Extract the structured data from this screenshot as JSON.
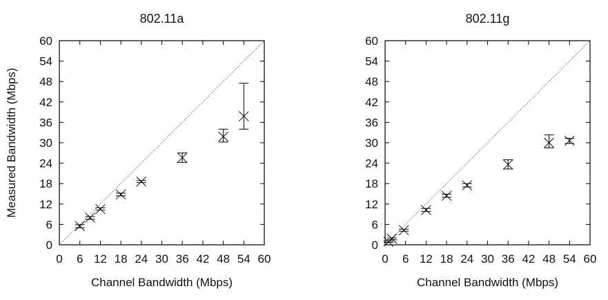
{
  "chart_data": [
    {
      "type": "scatter",
      "title": "802.11a",
      "xlabel": "Channel Bandwidth (Mbps)",
      "ylabel": "Measured Bandwidth (Mbps)",
      "xlim": [
        0,
        60
      ],
      "ylim": [
        0,
        60
      ],
      "xticks": [
        "0",
        "6",
        "12",
        "18",
        "24",
        "30",
        "36",
        "42",
        "48",
        "54",
        "60"
      ],
      "yticks": [
        "0",
        "6",
        "12",
        "18",
        "24",
        "30",
        "36",
        "42",
        "48",
        "54",
        "60"
      ],
      "grid": false,
      "reference_line": "y = x (dotted)",
      "marker": "x",
      "error_bars": true,
      "points": [
        {
          "x": 6,
          "y": 5.5,
          "ylow": 5.0,
          "yhigh": 5.9
        },
        {
          "x": 9,
          "y": 8.0,
          "ylow": 7.5,
          "yhigh": 8.3
        },
        {
          "x": 12,
          "y": 10.5,
          "ylow": 10.2,
          "yhigh": 10.9
        },
        {
          "x": 18,
          "y": 14.8,
          "ylow": 14.4,
          "yhigh": 15.2
        },
        {
          "x": 24,
          "y": 18.6,
          "ylow": 18.3,
          "yhigh": 18.9
        },
        {
          "x": 36,
          "y": 25.6,
          "ylow": 24.2,
          "yhigh": 27.0
        },
        {
          "x": 48,
          "y": 31.8,
          "ylow": 30.2,
          "yhigh": 34.0
        },
        {
          "x": 54,
          "y": 37.8,
          "ylow": 34.0,
          "yhigh": 47.5
        }
      ]
    },
    {
      "type": "scatter",
      "title": "802.11g",
      "xlabel": "Channel Bandwidth (Mbps)",
      "ylabel": "",
      "xlim": [
        0,
        60
      ],
      "ylim": [
        0,
        60
      ],
      "xticks": [
        "0",
        "6",
        "12",
        "18",
        "24",
        "30",
        "36",
        "42",
        "48",
        "54",
        "60"
      ],
      "yticks": [
        "0",
        "6",
        "12",
        "18",
        "24",
        "30",
        "36",
        "42",
        "48",
        "54",
        "60"
      ],
      "grid": false,
      "reference_line": "y = x (dotted)",
      "marker": "x",
      "error_bars": true,
      "points": [
        {
          "x": 1,
          "y": 0.9,
          "ylow": 0.7,
          "yhigh": 1.1
        },
        {
          "x": 2,
          "y": 1.8,
          "ylow": 1.5,
          "yhigh": 2.0
        },
        {
          "x": 5.5,
          "y": 4.3,
          "ylow": 4.0,
          "yhigh": 4.6
        },
        {
          "x": 12,
          "y": 10.2,
          "ylow": 9.8,
          "yhigh": 10.7
        },
        {
          "x": 18,
          "y": 14.4,
          "ylow": 14.0,
          "yhigh": 14.9
        },
        {
          "x": 24,
          "y": 17.5,
          "ylow": 17.0,
          "yhigh": 18.0
        },
        {
          "x": 36,
          "y": 23.6,
          "ylow": 22.3,
          "yhigh": 25.0
        },
        {
          "x": 48,
          "y": 30.0,
          "ylow": 28.5,
          "yhigh": 32.3
        },
        {
          "x": 54,
          "y": 30.6,
          "ylow": 29.8,
          "yhigh": 31.3
        }
      ]
    }
  ]
}
